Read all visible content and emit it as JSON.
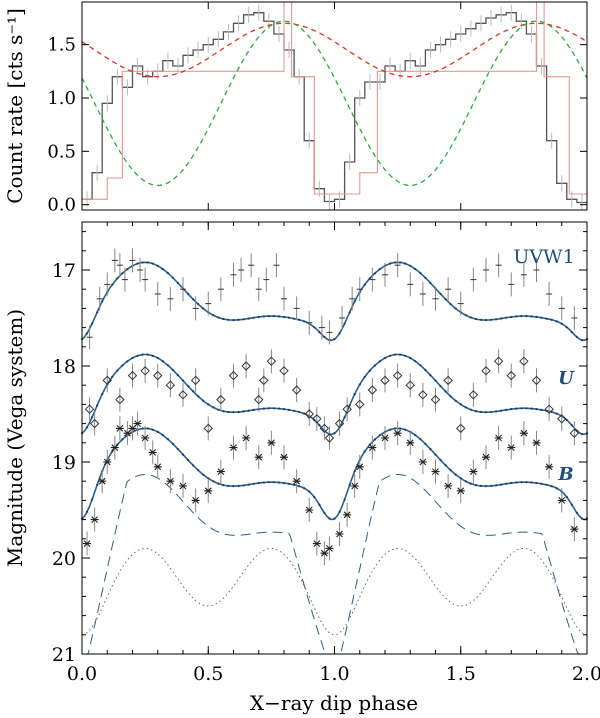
{
  "chart_data": [
    {
      "type": "line",
      "panel": "top",
      "ylabel": "Count rate [cts s⁻¹]",
      "xlim": [
        0,
        2
      ],
      "ylim": [
        -0.05,
        1.9
      ],
      "yticks": [
        0.0,
        0.5,
        1.0,
        1.5
      ],
      "ytick_labels": [
        "0.0",
        "0.5",
        "1.0",
        "1.5"
      ],
      "x_tick_values": [
        0.0,
        0.5,
        1.0,
        1.5,
        2.0
      ],
      "series": [
        {
          "kind": "histogram",
          "color": "#555555",
          "x": [
            0.0,
            0.04,
            0.08,
            0.12,
            0.16,
            0.2,
            0.24,
            0.28,
            0.32,
            0.36,
            0.4,
            0.44,
            0.48,
            0.52,
            0.56,
            0.6,
            0.64,
            0.68,
            0.72,
            0.76,
            0.8,
            0.84,
            0.88,
            0.92,
            0.96,
            1.0,
            1.04,
            1.08,
            1.12,
            1.16,
            1.2,
            1.24,
            1.28,
            1.32,
            1.36,
            1.4,
            1.44,
            1.48,
            1.52,
            1.56,
            1.6,
            1.64,
            1.68,
            1.72,
            1.76,
            1.8,
            1.84,
            1.88,
            1.92,
            1.96,
            2.0
          ],
          "y": [
            0.05,
            0.3,
            0.95,
            1.2,
            1.1,
            1.3,
            1.2,
            1.25,
            1.35,
            1.3,
            1.4,
            1.45,
            1.5,
            1.55,
            1.62,
            1.7,
            1.78,
            1.8,
            1.72,
            1.6,
            1.45,
            1.2,
            0.6,
            0.15,
            0.03,
            0.05,
            0.4,
            1.0,
            1.15,
            1.15,
            1.3,
            1.25,
            1.35,
            1.3,
            1.45,
            1.5,
            1.55,
            1.6,
            1.65,
            1.7,
            1.75,
            1.78,
            1.8,
            1.72,
            1.6,
            1.3,
            0.6,
            0.2,
            0.05,
            0.02,
            0.02
          ]
        },
        {
          "kind": "histogram",
          "color": "#e59a8f",
          "x": [
            0.0,
            0.1,
            0.16,
            0.8,
            0.83,
            0.92,
            1.1,
            1.17,
            1.8,
            1.83,
            1.93,
            2.0
          ],
          "y": [
            0.05,
            0.25,
            1.25,
            1.9,
            1.2,
            0.1,
            0.3,
            1.25,
            1.9,
            1.2,
            0.1,
            0.1
          ]
        },
        {
          "kind": "model",
          "color": "#d9381e",
          "style": "dashed",
          "formula": "1.45 + 0.25*cos(2*pi*(x-0.8))",
          "x": [
            0.0,
            0.25,
            0.5,
            0.75,
            1.0,
            1.25,
            1.5,
            1.75,
            2.0
          ],
          "y": [
            1.66,
            1.3,
            1.35,
            1.7,
            1.65,
            1.27,
            1.31,
            1.7,
            1.66
          ]
        },
        {
          "kind": "model",
          "color": "#2ea843",
          "style": "dashed",
          "formula": "0.95 + 0.77*cos(2*pi*(x-0.8))",
          "x": [
            0.0,
            0.3,
            0.8,
            1.3,
            1.8,
            2.0
          ],
          "y": [
            1.19,
            0.18,
            1.72,
            0.18,
            1.72,
            1.19
          ]
        }
      ]
    },
    {
      "type": "line",
      "panel": "bottom",
      "ylabel": "Magnitude (Vega system)",
      "xlabel": "X−ray dip phase",
      "xlim": [
        0,
        2
      ],
      "ylim": [
        21.0,
        16.5
      ],
      "y_inverted": true,
      "yticks": [
        17,
        18,
        19,
        20,
        21
      ],
      "ytick_labels": [
        "17",
        "18",
        "19",
        "20",
        "21"
      ],
      "xticks": [
        0.0,
        0.5,
        1.0,
        1.5,
        2.0
      ],
      "xtick_labels": [
        "0.0",
        "0.5",
        "1.0",
        "1.5",
        "2.0"
      ],
      "series": [
        {
          "name": "UVW1",
          "marker": "plus",
          "color": "#444444",
          "model_color": "#2b5f8e",
          "model_formula": "17.32 - 0.28*cos(2*pi*(x-0.25)) - 0.12*cos(4*pi*(x-0.25)) + 0.28*exp(-((x mod 1)-1)^2/0.005)",
          "points_x": [
            0.03,
            0.07,
            0.1,
            0.13,
            0.15,
            0.17,
            0.2,
            0.23,
            0.25,
            0.3,
            0.35,
            0.4,
            0.45,
            0.5,
            0.55,
            0.6,
            0.63,
            0.67,
            0.7,
            0.73,
            0.77,
            0.8,
            0.85,
            0.9,
            0.95,
            0.98,
            1.03,
            1.07,
            1.1,
            1.15,
            1.2,
            1.25,
            1.3,
            1.35,
            1.4,
            1.45,
            1.5,
            1.55,
            1.6,
            1.65,
            1.7,
            1.75,
            1.8,
            1.85,
            1.9,
            1.95
          ],
          "points_y": [
            17.7,
            17.3,
            17.15,
            16.9,
            16.95,
            17.1,
            16.9,
            17.0,
            17.1,
            17.25,
            17.3,
            17.2,
            17.4,
            17.35,
            17.2,
            17.05,
            17.0,
            16.95,
            17.2,
            17.1,
            16.95,
            17.3,
            17.4,
            17.55,
            17.6,
            17.65,
            17.5,
            17.3,
            17.2,
            17.1,
            17.05,
            16.95,
            17.15,
            17.25,
            17.3,
            17.2,
            17.35,
            17.1,
            17.0,
            16.95,
            17.15,
            17.05,
            17.0,
            17.25,
            17.4,
            17.5
          ]
        },
        {
          "name": "U",
          "marker": "diamond",
          "color": "#444444",
          "model_color": "#2b5f8e",
          "model_formula": "18.28 - 0.28*cos(2*pi*(x-0.25)) - 0.12*cos(4*pi*(x-0.25)) + 0.3*exp(-((x mod 1)-1)^2/0.005)",
          "points_x": [
            0.03,
            0.05,
            0.1,
            0.15,
            0.2,
            0.25,
            0.3,
            0.35,
            0.4,
            0.45,
            0.5,
            0.55,
            0.6,
            0.65,
            0.7,
            0.72,
            0.75,
            0.8,
            0.85,
            0.9,
            0.93,
            0.96,
            0.98,
            1.02,
            1.05,
            1.1,
            1.15,
            1.2,
            1.25,
            1.3,
            1.35,
            1.4,
            1.45,
            1.5,
            1.55,
            1.6,
            1.65,
            1.7,
            1.75,
            1.8,
            1.85,
            1.9,
            1.95
          ],
          "points_y": [
            18.45,
            18.6,
            18.15,
            18.35,
            18.1,
            18.05,
            18.1,
            18.2,
            18.3,
            18.15,
            18.65,
            18.35,
            18.1,
            18.0,
            18.35,
            18.15,
            17.95,
            18.05,
            18.25,
            18.5,
            18.55,
            18.65,
            18.75,
            18.6,
            18.45,
            18.4,
            18.25,
            18.15,
            18.1,
            18.2,
            18.3,
            18.35,
            18.15,
            18.65,
            18.3,
            18.05,
            17.95,
            18.1,
            17.95,
            18.15,
            18.45,
            18.55,
            18.7
          ]
        },
        {
          "name": "B",
          "marker": "asterisk",
          "color": "#444444",
          "model_color": "#2b5f8e",
          "model_formula": "19.05 - 0.28*cos(2*pi*(x-0.25)) - 0.12*cos(4*pi*(x-0.25)) + 0.42*exp(-((x mod 1)-1)^2/0.005)",
          "points_x": [
            0.02,
            0.05,
            0.08,
            0.1,
            0.13,
            0.15,
            0.18,
            0.2,
            0.22,
            0.25,
            0.28,
            0.3,
            0.35,
            0.4,
            0.45,
            0.5,
            0.55,
            0.6,
            0.65,
            0.7,
            0.75,
            0.8,
            0.85,
            0.9,
            0.93,
            0.96,
            0.98,
            1.02,
            1.05,
            1.08,
            1.1,
            1.15,
            1.2,
            1.25,
            1.3,
            1.35,
            1.4,
            1.45,
            1.5,
            1.55,
            1.6,
            1.65,
            1.7,
            1.75,
            1.8,
            1.85,
            1.9,
            1.95
          ],
          "points_y": [
            19.85,
            19.6,
            19.2,
            19.0,
            18.85,
            18.65,
            18.7,
            18.65,
            18.6,
            18.75,
            18.9,
            19.05,
            19.2,
            19.25,
            19.4,
            19.3,
            19.1,
            18.85,
            18.75,
            18.95,
            18.8,
            18.95,
            19.2,
            19.5,
            19.85,
            19.95,
            19.9,
            19.75,
            19.55,
            19.25,
            19.05,
            18.85,
            18.75,
            18.7,
            18.8,
            19.0,
            19.1,
            19.25,
            19.3,
            19.1,
            18.95,
            18.75,
            18.85,
            18.7,
            18.8,
            19.05,
            19.4,
            19.7
          ]
        },
        {
          "kind": "component",
          "color": "#2b5f8e",
          "style": "long-dashed",
          "formula": "19.65 - 0.42*cos(2*pi*(x-0.25)) + 0.4*max(0, 0.9 - 6*|(x mod 1)-0.99|)*2.8",
          "x": [
            0.0,
            0.25,
            0.5,
            0.75,
            1.0,
            1.25,
            1.5,
            1.75,
            2.0
          ],
          "y": [
            21.0,
            19.3,
            19.75,
            19.3,
            21.0,
            19.3,
            19.75,
            19.3,
            21.0
          ]
        },
        {
          "kind": "component",
          "color": "#666666",
          "style": "dotted",
          "formula": "20.2 - 0.3*cos(4*pi*(x-0.25)) + 0.3*exp(-((x mod 1)-1)^2/0.01)",
          "x": [
            0.0,
            0.25,
            0.5,
            0.75,
            1.0,
            1.25,
            1.5,
            1.75,
            2.0
          ],
          "y": [
            20.5,
            19.9,
            20.5,
            19.9,
            20.5,
            19.9,
            20.5,
            19.9,
            20.5
          ]
        }
      ]
    }
  ]
}
